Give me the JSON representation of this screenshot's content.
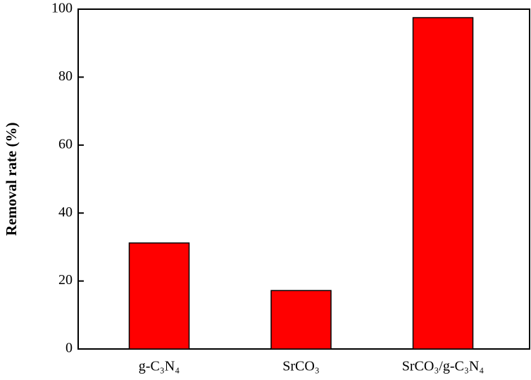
{
  "chart_data": {
    "type": "bar",
    "y_label": "Removal rate (%)",
    "categories": [
      "g-C₃N₄",
      "SrCO₃",
      "SrCO₃/g-C₃N₄"
    ],
    "values": [
      31.2,
      17.2,
      97.5
    ],
    "color": "#ff0000",
    "ylim": [
      0,
      100
    ],
    "yticks": [
      0,
      20,
      40,
      60,
      80,
      100
    ],
    "grid": false
  }
}
